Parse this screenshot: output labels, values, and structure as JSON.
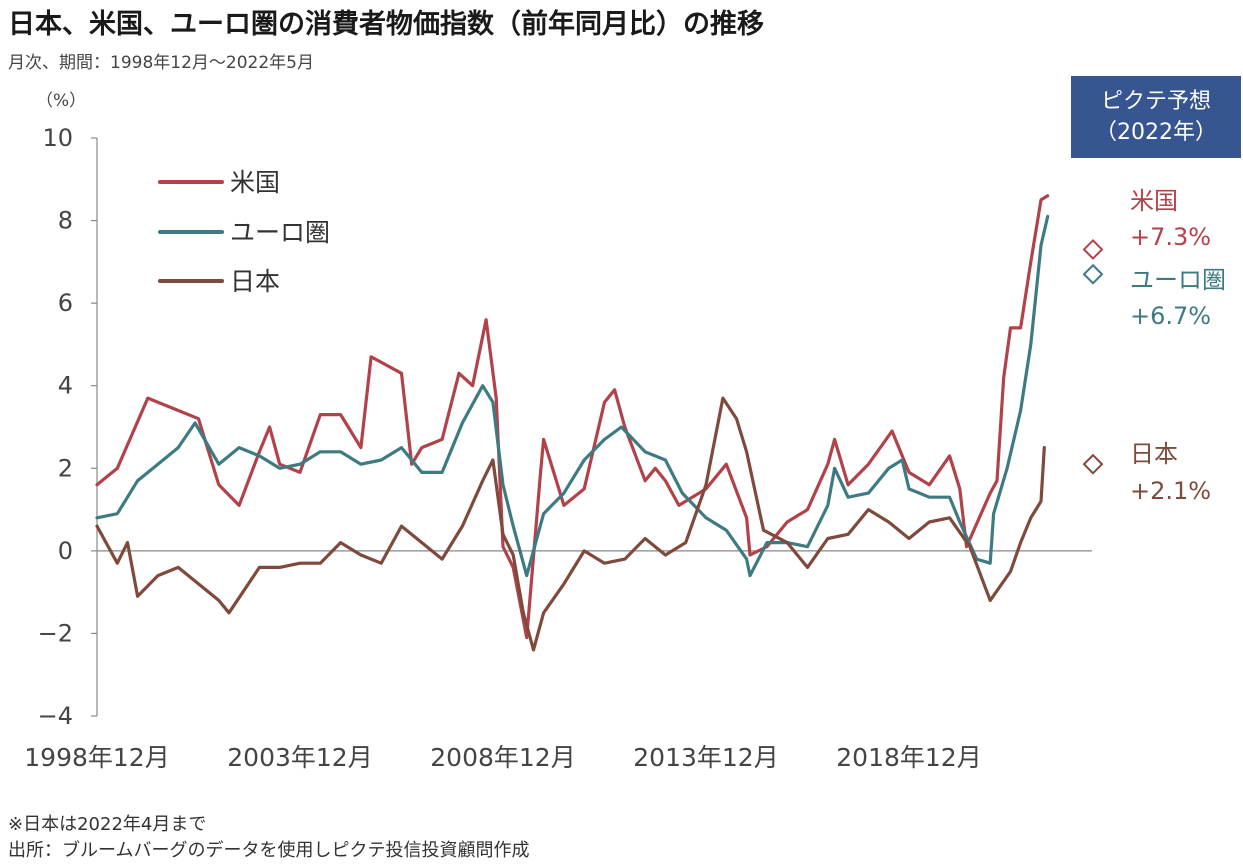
{
  "title": "日本、米国、ユーロ圏の消費者物価指数（前年同月比）の推移",
  "subtitle": "月次、期間：1998年12月～2022年5月",
  "forecast_box": {
    "line1": "ピクテ予想",
    "line2": "（2022年）"
  },
  "notes": {
    "note1": "※日本は2022年4月まで",
    "source": "出所：ブルームバーグのデータを使用しピクテ投信投資顧問作成"
  },
  "colors": {
    "us": "#b2424a",
    "euro": "#3e7a82",
    "japan": "#7e4a3c",
    "forecast_box": "#365591"
  },
  "chart_data": {
    "type": "line",
    "yunit": "（%）",
    "ylim": [
      -4,
      10
    ],
    "yticks": [
      "10",
      "8",
      "6",
      "4",
      "2",
      "0",
      "−2",
      "−4"
    ],
    "xtick_labels": [
      "1998年12月",
      "2003年12月",
      "2008年12月",
      "2013年12月",
      "2018年12月"
    ],
    "grid": false,
    "legend_position": "top-left",
    "series": [
      {
        "name": "米国",
        "color": "#b2424a",
        "points": [
          [
            "1998-12",
            1.6
          ],
          [
            "1999-06",
            2.0
          ],
          [
            "2000-03",
            3.7
          ],
          [
            "2000-09",
            3.5
          ],
          [
            "2001-06",
            3.2
          ],
          [
            "2001-12",
            1.6
          ],
          [
            "2002-06",
            1.1
          ],
          [
            "2002-12",
            2.4
          ],
          [
            "2003-03",
            3.0
          ],
          [
            "2003-06",
            2.1
          ],
          [
            "2003-12",
            1.9
          ],
          [
            "2004-06",
            3.3
          ],
          [
            "2004-12",
            3.3
          ],
          [
            "2005-06",
            2.5
          ],
          [
            "2005-09",
            4.7
          ],
          [
            "2006-06",
            4.3
          ],
          [
            "2006-09",
            2.1
          ],
          [
            "2006-12",
            2.5
          ],
          [
            "2007-06",
            2.7
          ],
          [
            "2007-11",
            4.3
          ],
          [
            "2008-03",
            4.0
          ],
          [
            "2008-07",
            5.6
          ],
          [
            "2008-10",
            3.7
          ],
          [
            "2008-12",
            0.1
          ],
          [
            "2009-03",
            -0.4
          ],
          [
            "2009-07",
            -2.1
          ],
          [
            "2009-11",
            1.8
          ],
          [
            "2009-12",
            2.7
          ],
          [
            "2010-06",
            1.1
          ],
          [
            "2010-12",
            1.5
          ],
          [
            "2011-06",
            3.6
          ],
          [
            "2011-09",
            3.9
          ],
          [
            "2011-12",
            3.0
          ],
          [
            "2012-06",
            1.7
          ],
          [
            "2012-09",
            2.0
          ],
          [
            "2012-12",
            1.7
          ],
          [
            "2013-04",
            1.1
          ],
          [
            "2013-12",
            1.5
          ],
          [
            "2014-06",
            2.1
          ],
          [
            "2014-12",
            0.8
          ],
          [
            "2015-01",
            -0.1
          ],
          [
            "2015-06",
            0.1
          ],
          [
            "2015-12",
            0.7
          ],
          [
            "2016-06",
            1.0
          ],
          [
            "2016-12",
            2.1
          ],
          [
            "2017-02",
            2.7
          ],
          [
            "2017-06",
            1.6
          ],
          [
            "2017-12",
            2.1
          ],
          [
            "2018-07",
            2.9
          ],
          [
            "2018-12",
            1.9
          ],
          [
            "2019-06",
            1.6
          ],
          [
            "2019-12",
            2.3
          ],
          [
            "2020-03",
            1.5
          ],
          [
            "2020-05",
            0.1
          ],
          [
            "2020-12",
            1.4
          ],
          [
            "2021-02",
            1.7
          ],
          [
            "2021-04",
            4.2
          ],
          [
            "2021-06",
            5.4
          ],
          [
            "2021-09",
            5.4
          ],
          [
            "2021-12",
            7.0
          ],
          [
            "2022-03",
            8.5
          ],
          [
            "2022-05",
            8.6
          ]
        ]
      },
      {
        "name": "ユーロ圏",
        "color": "#3e7a82",
        "points": [
          [
            "1998-12",
            0.8
          ],
          [
            "1999-06",
            0.9
          ],
          [
            "1999-12",
            1.7
          ],
          [
            "2000-06",
            2.1
          ],
          [
            "2000-12",
            2.5
          ],
          [
            "2001-05",
            3.1
          ],
          [
            "2001-12",
            2.1
          ],
          [
            "2002-06",
            2.5
          ],
          [
            "2002-12",
            2.3
          ],
          [
            "2003-06",
            2.0
          ],
          [
            "2003-12",
            2.1
          ],
          [
            "2004-06",
            2.4
          ],
          [
            "2004-12",
            2.4
          ],
          [
            "2005-06",
            2.1
          ],
          [
            "2005-12",
            2.2
          ],
          [
            "2006-06",
            2.5
          ],
          [
            "2006-12",
            1.9
          ],
          [
            "2007-06",
            1.9
          ],
          [
            "2007-12",
            3.1
          ],
          [
            "2008-06",
            4.0
          ],
          [
            "2008-09",
            3.6
          ],
          [
            "2008-12",
            1.6
          ],
          [
            "2009-03",
            0.6
          ],
          [
            "2009-07",
            -0.6
          ],
          [
            "2009-12",
            0.9
          ],
          [
            "2010-06",
            1.4
          ],
          [
            "2010-12",
            2.2
          ],
          [
            "2011-06",
            2.7
          ],
          [
            "2011-11",
            3.0
          ],
          [
            "2012-06",
            2.4
          ],
          [
            "2012-12",
            2.2
          ],
          [
            "2013-05",
            1.4
          ],
          [
            "2013-12",
            0.8
          ],
          [
            "2014-06",
            0.5
          ],
          [
            "2014-12",
            -0.2
          ],
          [
            "2015-01",
            -0.6
          ],
          [
            "2015-06",
            0.2
          ],
          [
            "2015-12",
            0.2
          ],
          [
            "2016-06",
            0.1
          ],
          [
            "2016-12",
            1.1
          ],
          [
            "2017-02",
            2.0
          ],
          [
            "2017-06",
            1.3
          ],
          [
            "2017-12",
            1.4
          ],
          [
            "2018-06",
            2.0
          ],
          [
            "2018-10",
            2.2
          ],
          [
            "2018-12",
            1.5
          ],
          [
            "2019-06",
            1.3
          ],
          [
            "2019-12",
            1.3
          ],
          [
            "2020-03",
            0.7
          ],
          [
            "2020-08",
            -0.2
          ],
          [
            "2020-12",
            -0.3
          ],
          [
            "2021-01",
            0.9
          ],
          [
            "2021-05",
            2.0
          ],
          [
            "2021-09",
            3.4
          ],
          [
            "2021-12",
            5.0
          ],
          [
            "2022-03",
            7.4
          ],
          [
            "2022-05",
            8.1
          ]
        ]
      },
      {
        "name": "日本",
        "color": "#7e4a3c",
        "points": [
          [
            "1998-12",
            0.6
          ],
          [
            "1999-06",
            -0.3
          ],
          [
            "1999-09",
            0.2
          ],
          [
            "1999-12",
            -1.1
          ],
          [
            "2000-06",
            -0.6
          ],
          [
            "2000-12",
            -0.4
          ],
          [
            "2001-06",
            -0.8
          ],
          [
            "2001-12",
            -1.2
          ],
          [
            "2002-03",
            -1.5
          ],
          [
            "2002-12",
            -0.4
          ],
          [
            "2003-06",
            -0.4
          ],
          [
            "2003-12",
            -0.3
          ],
          [
            "2004-06",
            -0.3
          ],
          [
            "2004-12",
            0.2
          ],
          [
            "2005-06",
            -0.1
          ],
          [
            "2005-12",
            -0.3
          ],
          [
            "2006-06",
            0.6
          ],
          [
            "2006-12",
            0.2
          ],
          [
            "2007-06",
            -0.2
          ],
          [
            "2007-12",
            0.6
          ],
          [
            "2008-06",
            1.7
          ],
          [
            "2008-09",
            2.2
          ],
          [
            "2008-12",
            0.4
          ],
          [
            "2009-03",
            -0.1
          ],
          [
            "2009-06",
            -1.5
          ],
          [
            "2009-09",
            -2.4
          ],
          [
            "2009-12",
            -1.5
          ],
          [
            "2010-06",
            -0.8
          ],
          [
            "2010-12",
            0.0
          ],
          [
            "2011-06",
            -0.3
          ],
          [
            "2011-12",
            -0.2
          ],
          [
            "2012-06",
            0.3
          ],
          [
            "2012-12",
            -0.1
          ],
          [
            "2013-06",
            0.2
          ],
          [
            "2013-12",
            1.6
          ],
          [
            "2014-05",
            3.7
          ],
          [
            "2014-09",
            3.2
          ],
          [
            "2014-12",
            2.4
          ],
          [
            "2015-05",
            0.5
          ],
          [
            "2015-12",
            0.2
          ],
          [
            "2016-06",
            -0.4
          ],
          [
            "2016-12",
            0.3
          ],
          [
            "2017-06",
            0.4
          ],
          [
            "2017-12",
            1.0
          ],
          [
            "2018-06",
            0.7
          ],
          [
            "2018-12",
            0.3
          ],
          [
            "2019-06",
            0.7
          ],
          [
            "2019-12",
            0.8
          ],
          [
            "2020-06",
            0.1
          ],
          [
            "2020-12",
            -1.2
          ],
          [
            "2021-06",
            -0.5
          ],
          [
            "2021-09",
            0.2
          ],
          [
            "2021-12",
            0.8
          ],
          [
            "2022-03",
            1.2
          ],
          [
            "2022-04",
            2.5
          ]
        ]
      }
    ],
    "forecast": [
      {
        "name": "米国",
        "label_name": "米国",
        "label_value": "+7.3%",
        "value": 7.3,
        "color": "#b2424a"
      },
      {
        "name": "ユーロ圏",
        "label_name": "ユーロ圏",
        "label_value": "+6.7%",
        "value": 6.7,
        "color": "#3e7a82"
      },
      {
        "name": "日本",
        "label_name": "日本",
        "label_value": "+2.1%",
        "value": 2.1,
        "color": "#7e4a3c"
      }
    ]
  }
}
